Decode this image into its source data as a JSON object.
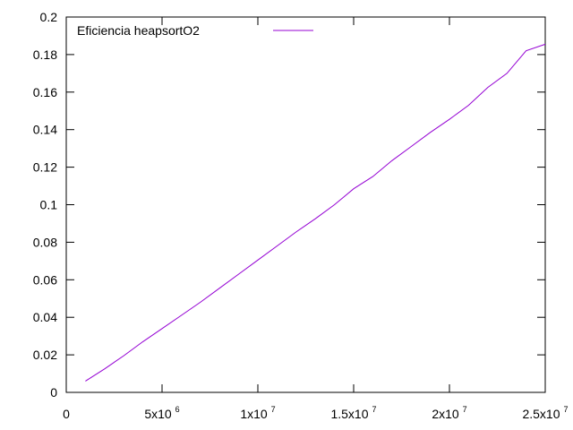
{
  "chart_data": {
    "type": "line",
    "title": "",
    "xlabel": "",
    "ylabel": "",
    "xlim": [
      0,
      25000000
    ],
    "ylim": [
      0,
      0.2
    ],
    "grid": false,
    "legend_position": "top-left",
    "x_ticks": [
      {
        "value": 0,
        "mantissa": "0",
        "exp": ""
      },
      {
        "value": 5000000,
        "mantissa": "5x10",
        "exp": "6"
      },
      {
        "value": 10000000,
        "mantissa": "1x10",
        "exp": "7"
      },
      {
        "value": 15000000,
        "mantissa": "1.5x10",
        "exp": "7"
      },
      {
        "value": 20000000,
        "mantissa": "2x10",
        "exp": "7"
      },
      {
        "value": 25000000,
        "mantissa": "2.5x10",
        "exp": "7"
      }
    ],
    "y_ticks": [
      {
        "value": 0,
        "label": "0"
      },
      {
        "value": 0.02,
        "label": "0.02"
      },
      {
        "value": 0.04,
        "label": "0.04"
      },
      {
        "value": 0.06,
        "label": "0.06"
      },
      {
        "value": 0.08,
        "label": "0.08"
      },
      {
        "value": 0.1,
        "label": "0.1"
      },
      {
        "value": 0.12,
        "label": "0.12"
      },
      {
        "value": 0.14,
        "label": "0.14"
      },
      {
        "value": 0.16,
        "label": "0.16"
      },
      {
        "value": 0.18,
        "label": "0.18"
      },
      {
        "value": 0.2,
        "label": "0.2"
      }
    ],
    "series": [
      {
        "name": "Eficiencia heapsortO2",
        "color": "#9400d3",
        "x": [
          1000000,
          2000000,
          3000000,
          4000000,
          5000000,
          6000000,
          7000000,
          8000000,
          9000000,
          10000000,
          11000000,
          12000000,
          13000000,
          14000000,
          15000000,
          16000000,
          17000000,
          18000000,
          19000000,
          20000000,
          21000000,
          22000000,
          23000000,
          24000000,
          25000000
        ],
        "y": [
          0.006,
          0.0125,
          0.0195,
          0.027,
          0.034,
          0.041,
          0.048,
          0.0555,
          0.063,
          0.0705,
          0.078,
          0.0855,
          0.0925,
          0.1,
          0.1085,
          0.115,
          0.1235,
          0.131,
          0.1385,
          0.1455,
          0.153,
          0.1625,
          0.17,
          0.182,
          0.1855
        ]
      }
    ]
  }
}
